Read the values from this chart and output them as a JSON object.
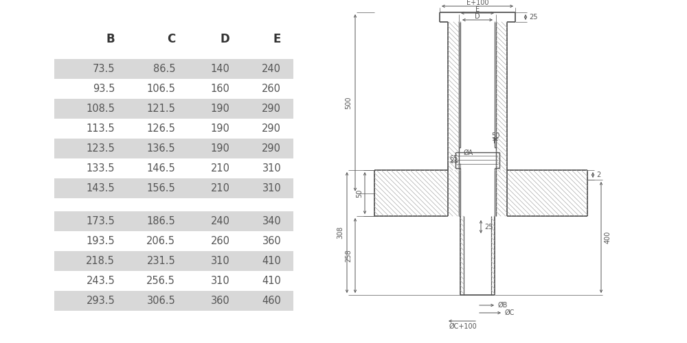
{
  "table_headers": [
    "B",
    "C",
    "D",
    "E"
  ],
  "table_rows_group1": [
    [
      "73.5",
      "86.5",
      "140",
      "240"
    ],
    [
      "93.5",
      "106.5",
      "160",
      "260"
    ],
    [
      "108.5",
      "121.5",
      "190",
      "290"
    ],
    [
      "113.5",
      "126.5",
      "190",
      "290"
    ],
    [
      "123.5",
      "136.5",
      "190",
      "290"
    ],
    [
      "133.5",
      "146.5",
      "210",
      "310"
    ],
    [
      "143.5",
      "156.5",
      "210",
      "310"
    ]
  ],
  "table_rows_group2": [
    [
      "173.5",
      "186.5",
      "240",
      "340"
    ],
    [
      "193.5",
      "206.5",
      "260",
      "360"
    ],
    [
      "218.5",
      "231.5",
      "310",
      "410"
    ],
    [
      "243.5",
      "256.5",
      "310",
      "410"
    ],
    [
      "293.5",
      "306.5",
      "360",
      "460"
    ]
  ],
  "shaded_rows_group1": [
    0,
    2,
    4,
    6
  ],
  "shaded_rows_group2": [
    0,
    2,
    4
  ],
  "bg_color": "#ffffff",
  "row_shade_color": "#d8d8d8",
  "text_color": "#555555",
  "header_color": "#333333",
  "line_color": "#555555",
  "dim_color": "#555555",
  "hatch_color": "#aaaaaa"
}
